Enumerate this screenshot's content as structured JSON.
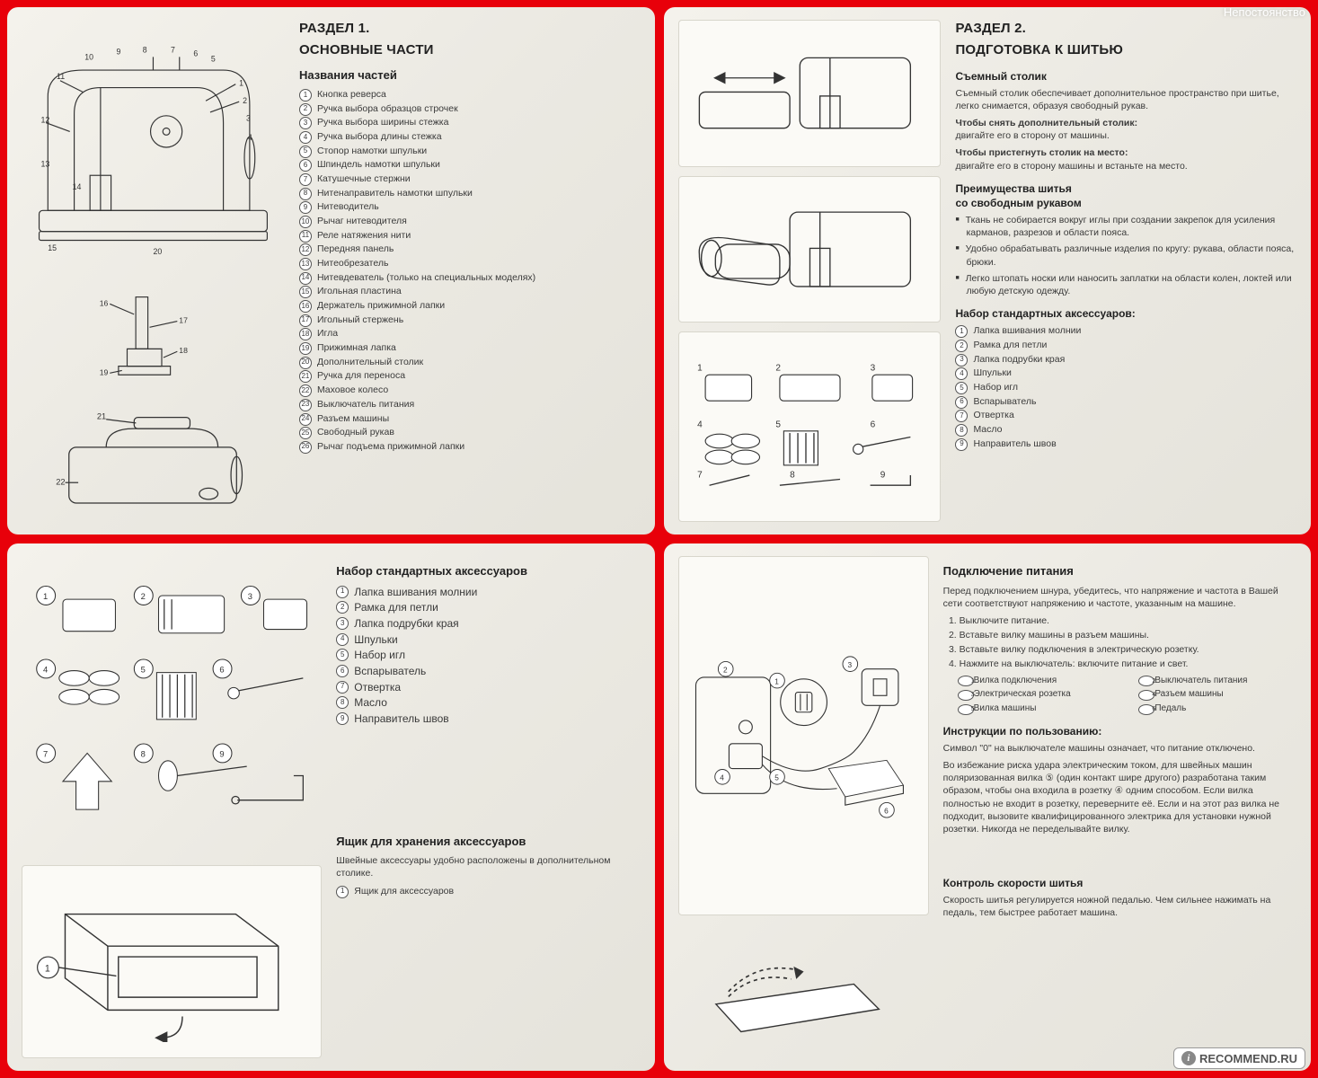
{
  "watermark_top": "Непостоянство",
  "watermark_bottom": "RECOMMEND.RU",
  "colors": {
    "frame": "#e8000a",
    "paper": "#f0eee6",
    "ink": "#333333"
  },
  "panel1": {
    "section_line1": "РАЗДЕЛ 1.",
    "section_line2": "ОСНОВНЫЕ ЧАСТИ",
    "subtitle": "Названия частей",
    "parts": [
      "Кнопка реверса",
      "Ручка выбора образцов строчек",
      "Ручка выбора ширины стежка",
      "Ручка выбора длины стежка",
      "Стопор намотки шпульки",
      "Шпиндель намотки шпульки",
      "Катушечные стержни",
      "Нитенаправитель намотки шпульки",
      "Нитеводитель",
      "Рычаг нитеводителя",
      "Реле натяжения нити",
      "Передняя панель",
      "Нитеобрезатель",
      "Нитевдеватель (только на специальных моделях)",
      "Игольная пластина",
      "Держатель прижимной лапки",
      "Игольный стержень",
      "Игла",
      "Прижимная лапка",
      "Дополнительный столик",
      "Ручка для переноса",
      "Маховое колесо",
      "Выключатель питания",
      "Разъем машины",
      "Свободный рукав",
      "Рычаг подъема прижимной лапки"
    ]
  },
  "panel2": {
    "section_line1": "РАЗДЕЛ 2.",
    "section_line2": "ПОДГОТОВКА К ШИТЬЮ",
    "h_table": "Съемный столик",
    "table_p1": "Съемный столик обеспечивает дополнительное пространство при шитье, легко снимается, образуя свободный рукав.",
    "table_b1": "Чтобы снять дополнительный столик:",
    "table_t1": "двигайте его в сторону от машины.",
    "table_b2": "Чтобы пристегнуть столик на место:",
    "table_t2": "двигайте его в сторону машины и встаньте на место.",
    "h_free1": "Преимущества шитья",
    "h_free2": "со свободным рукавом",
    "free_bullets": [
      "Ткань не собирается вокруг иглы при создании закрепок для усиления карманов, разрезов и области пояса.",
      "Удобно обрабатывать различные изделия по кругу: рукава, области пояса, брюки.",
      "Легко штопать носки или наносить заплатки на области колен, локтей или любую детскую одежду."
    ],
    "h_acc": "Набор стандартных аксессуаров:",
    "acc": [
      "Лапка вшивания молнии",
      "Рамка для петли",
      "Лапка подрубки края",
      "Шпульки",
      "Набор игл",
      "Вспарыватель",
      "Отвертка",
      "Масло",
      "Направитель швов"
    ]
  },
  "panel3": {
    "h_acc": "Набор стандартных аксессуаров",
    "acc": [
      "Лапка вшивания молнии",
      "Рамка для петли",
      "Лапка подрубки края",
      "Шпульки",
      "Набор игл",
      "Вспарыватель",
      "Отвертка",
      "Масло",
      "Направитель швов"
    ],
    "h_box": "Ящик для хранения аксессуаров",
    "box_p": "Швейные аксессуары удобно расположены в дополнительном столике.",
    "box_item": "Ящик для аксессуаров"
  },
  "panel4": {
    "h_power": "Подключение питания",
    "power_p": "Перед подключением шнура, убедитесь, что напряжение и частота в Вашей сети соответствуют напряжению и частоте, указанным на машине.",
    "steps": [
      "Выключите питание.",
      "Вставьте вилку машины в разъем машины.",
      "Вставьте вилку подключения в электрическую розетку.",
      "Нажмите на выключатель: включите питание и свет."
    ],
    "refs": [
      "Вилка подключения",
      "Выключатель питания",
      "Электрическая розетка",
      "Разъем машины",
      "Вилка машины",
      "Педаль"
    ],
    "h_instr": "Инструкции по пользованию:",
    "instr_p1": "Символ \"0\" на выключателе машины означает, что питание отключено.",
    "instr_p2": "Во избежание риска удара электрическим током, для швейных машин поляризованная вилка ⑤ (один контакт шире другого) разработана таким образом, чтобы она входила в розетку ④ одним способом. Если вилка полностью не входит в розетку, переверните её. Если и на этот раз вилка не подходит, вызовите квалифицированного электрика для установки нужной розетки. Никогда не переделывайте вилку.",
    "h_speed": "Контроль скорости шитья",
    "speed_p": "Скорость шитья регулируется ножной педалью. Чем сильнее нажимать на педаль, тем быстрее работает машина."
  }
}
